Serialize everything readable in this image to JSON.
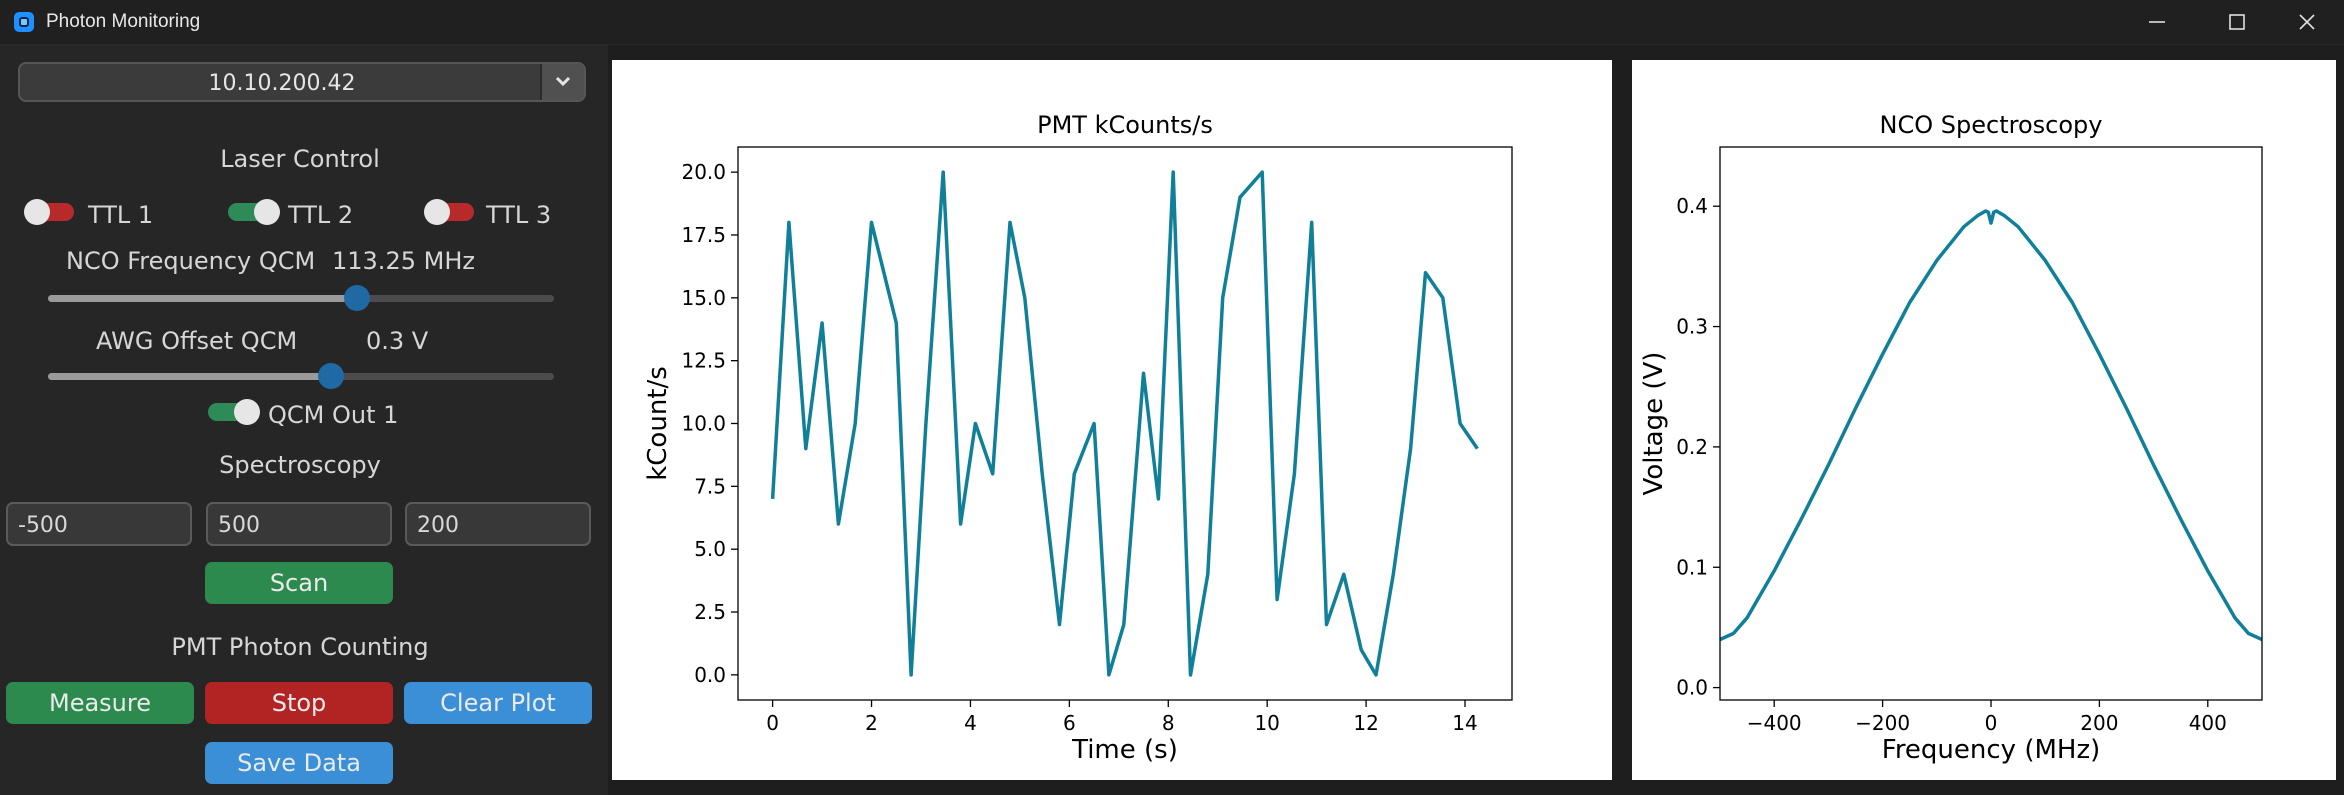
{
  "window": {
    "title": "Photon Monitoring",
    "icons": {
      "app": "app-icon",
      "minimize": "minimize-icon",
      "maximize": "maximize-icon",
      "close": "close-icon"
    }
  },
  "sidebar": {
    "ip_combo": {
      "value": "10.10.200.42",
      "icon": "chevron-down-icon"
    },
    "laser_control": {
      "title": "Laser Control",
      "ttl": [
        {
          "label": "TTL 1",
          "on": false
        },
        {
          "label": "TTL 2",
          "on": true
        },
        {
          "label": "TTL 3",
          "on": false
        }
      ],
      "nco": {
        "label": "NCO Frequency QCM",
        "value_text": "113.25 MHz",
        "fraction": 0.61
      },
      "awg": {
        "label": "AWG Offset QCM",
        "value_text": "0.3 V",
        "fraction": 0.56
      },
      "qcm_out": {
        "label": "QCM Out 1",
        "on": true
      }
    },
    "spectroscopy": {
      "title": "Spectroscopy",
      "start": "-500",
      "stop": "500",
      "points": "200",
      "scan_label": "Scan"
    },
    "pmt": {
      "title": "PMT Photon Counting",
      "measure_label": "Measure",
      "stop_label": "Stop",
      "clear_label": "Clear Plot",
      "save_label": "Save Data"
    }
  },
  "colors": {
    "line": "#0f7f9a",
    "green": "#2d8a4e",
    "red": "#b22424",
    "blue": "#3a8fd6",
    "slider_thumb": "#1f6aa5"
  },
  "chart_data": [
    {
      "type": "line",
      "title": "PMT kCounts/s",
      "xlabel": "Time (s)",
      "ylabel": "kCount/s",
      "xlim": [
        -0.7,
        14.95
      ],
      "ylim": [
        -1.0,
        21.0
      ],
      "x_ticks": [
        0,
        2,
        4,
        6,
        8,
        10,
        12,
        14
      ],
      "x_tick_labels": [
        "0",
        "2",
        "4",
        "6",
        "8",
        "10",
        "12",
        "14"
      ],
      "y_ticks": [
        0,
        2.5,
        5,
        7.5,
        10,
        12.5,
        15,
        17.5,
        20
      ],
      "y_tick_labels": [
        "0.0",
        "2.5",
        "5.0",
        "7.5",
        "10.0",
        "12.5",
        "15.0",
        "17.5",
        "20.0"
      ],
      "grid": false,
      "series": [
        {
          "x": [
            0,
            0.33,
            0.67,
            1.0,
            1.33,
            1.67,
            2.0,
            2.5,
            2.8,
            3.1,
            3.45,
            3.8,
            4.1,
            4.45,
            4.8,
            5.1,
            5.45,
            5.8,
            6.1,
            6.5,
            6.8,
            7.1,
            7.5,
            7.8,
            8.1,
            8.45,
            8.8,
            9.1,
            9.45,
            9.9,
            10.2,
            10.55,
            10.9,
            11.2,
            11.55,
            11.9,
            12.2,
            12.55,
            12.9,
            13.2,
            13.55,
            13.9,
            14.25
          ],
          "y": [
            7,
            18,
            9,
            14,
            6,
            10,
            18,
            14,
            0,
            10,
            20,
            6,
            10,
            8,
            18,
            15,
            8,
            2,
            8,
            10,
            0,
            2,
            12,
            7,
            20,
            0,
            4,
            15,
            19,
            20,
            3,
            8,
            18,
            2,
            4,
            1,
            0,
            4,
            9,
            16,
            15,
            10,
            9
          ]
        }
      ]
    },
    {
      "type": "line",
      "title": "NCO Spectroscopy",
      "xlabel": "Frequency (MHz)",
      "ylabel": "Voltage (V)",
      "xlim": [
        -500,
        500
      ],
      "ylim": [
        -0.0103,
        0.4492
      ],
      "x_ticks": [
        -400,
        -200,
        0,
        200,
        400
      ],
      "x_tick_labels": [
        "−400",
        "−200",
        "0",
        "200",
        "400"
      ],
      "y_ticks": [
        0,
        0.1,
        0.2,
        0.3,
        0.4
      ],
      "y_tick_labels": [
        "0.0",
        "0.1",
        "0.2",
        "0.3",
        "0.4"
      ],
      "grid": false,
      "series": [
        {
          "x": [
            -500,
            -475,
            -450,
            -400,
            -350,
            -300,
            -250,
            -200,
            -150,
            -100,
            -50,
            -25,
            -10,
            -5,
            0,
            5,
            10,
            25,
            50,
            100,
            150,
            200,
            250,
            300,
            350,
            400,
            450,
            475,
            500
          ],
          "y": [
            0.04,
            0.045,
            0.058,
            0.097,
            0.14,
            0.185,
            0.232,
            0.277,
            0.32,
            0.355,
            0.383,
            0.392,
            0.396,
            0.395,
            0.386,
            0.395,
            0.396,
            0.392,
            0.383,
            0.355,
            0.32,
            0.277,
            0.232,
            0.185,
            0.14,
            0.097,
            0.058,
            0.045,
            0.04
          ]
        }
      ]
    }
  ]
}
